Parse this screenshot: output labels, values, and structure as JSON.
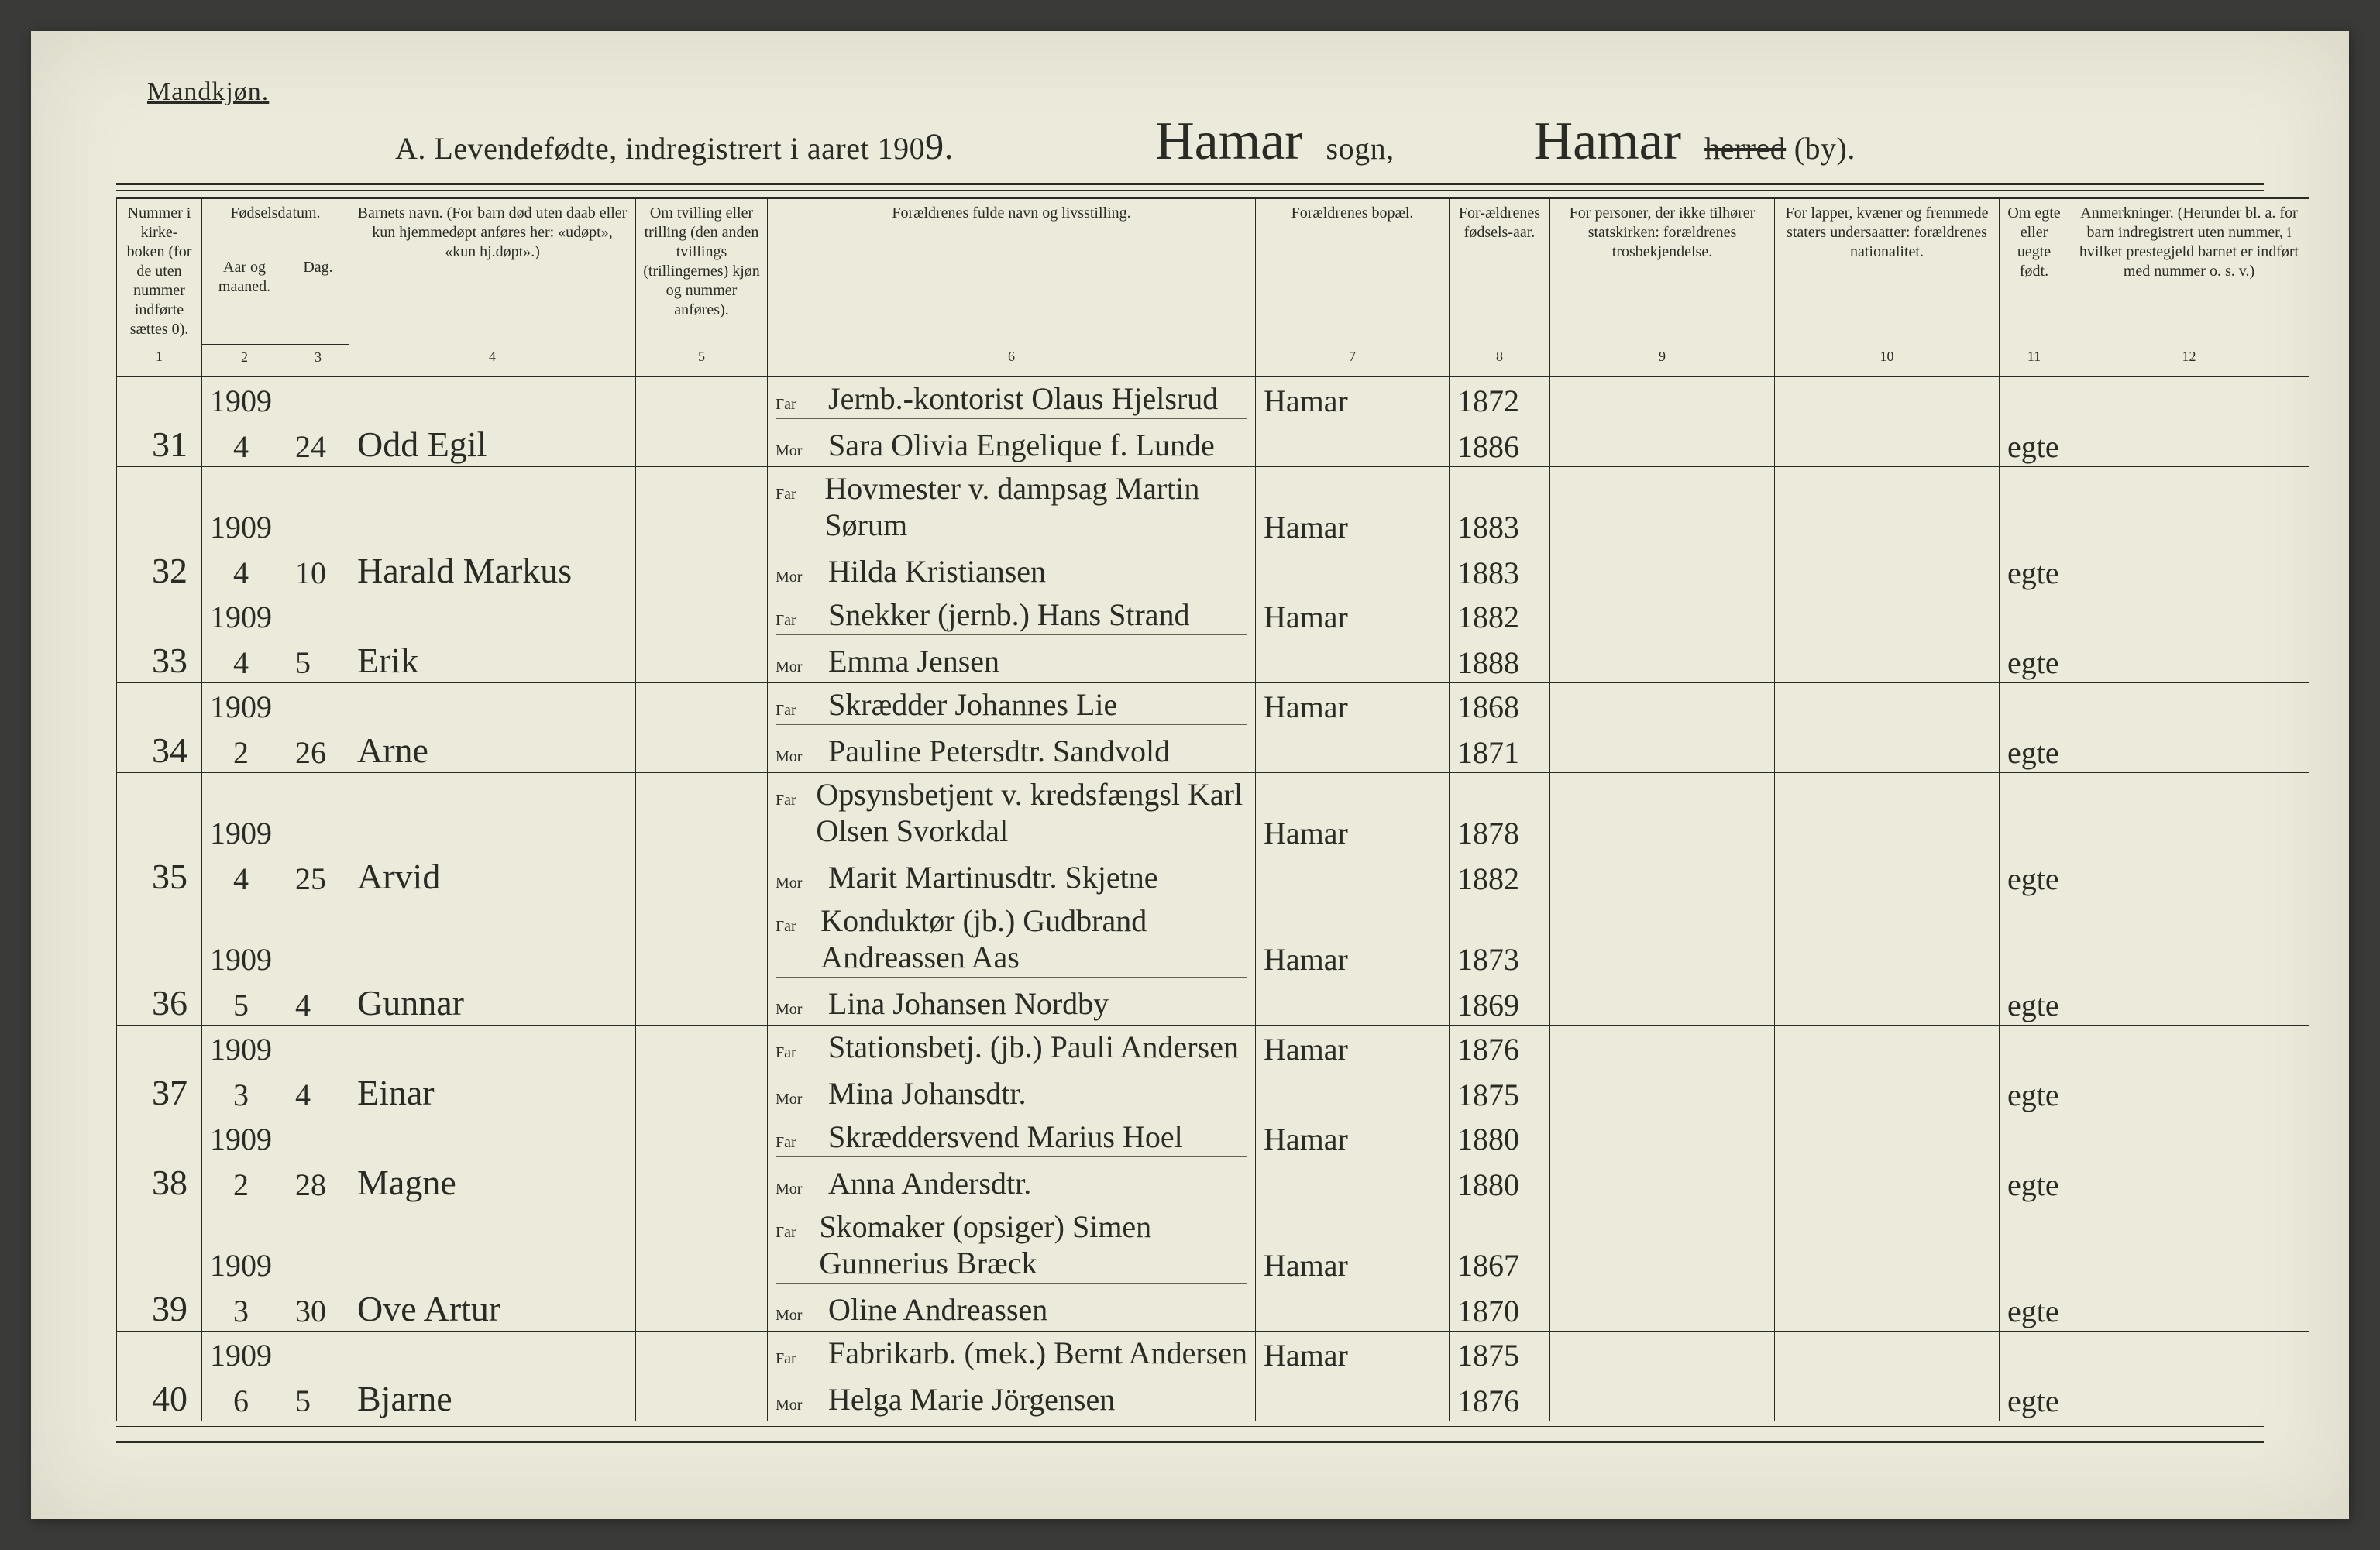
{
  "background_color": "#eceadb",
  "ink_color": "#2b2b26",
  "header": {
    "mandkjon": "Mandkjøn.",
    "title_prefix": "A.  Levendefødte, indregistrert i aaret 190",
    "title_year_suffix": "9.",
    "sogn_hand": "Hamar",
    "sogn_label": "sogn,",
    "by_hand": "Hamar",
    "herred_struck": "herred",
    "by_label": "(by)."
  },
  "columns": {
    "labels": [
      "Nummer i kirke-boken (for de uten nummer indførte sættes 0).",
      "Fødselsdatum.",
      "Aar og maaned.",
      "Dag.",
      "Barnets navn.\n(For barn død uten daab eller kun hjemmedøpt anføres her: «udøpt», «kun hj.døpt».)",
      "Om tvilling eller trilling (den anden tvillings (trillingernes) kjøn og nummer anføres).",
      "Forældrenes fulde navn og livsstilling.",
      "Forældrenes bopæl.",
      "For-ældrenes fødsels-aar.",
      "For personer, der ikke tilhører statskirken: forældrenes trosbekjendelse.",
      "For lapper, kvæner og fremmede staters undersaatter: forældrenes nationalitet.",
      "Om egte eller uegte født.",
      "Anmerkninger.\n(Herunder bl. a. for barn indregistrert uten nummer, i hvilket prestegjeld barnet er indført med nummer o. s. v.)"
    ],
    "numbers": [
      "1",
      "2",
      "3",
      "4",
      "5",
      "6",
      "7",
      "8",
      "9",
      "10",
      "11",
      "12"
    ]
  },
  "far_label": "Far",
  "mor_label": "Mor",
  "entries": [
    {
      "num": "31",
      "year": "1909",
      "month": "4",
      "day": "24",
      "child": "Odd Egil",
      "far": "Jernb.-kontorist Olaus Hjelsrud",
      "mor": "Sara Olivia Engelique f. Lunde",
      "bopael": "Hamar",
      "far_year": "1872",
      "mor_year": "1886",
      "egte": "egte"
    },
    {
      "num": "32",
      "year": "1909",
      "month": "4",
      "day": "10",
      "child": "Harald Markus",
      "far": "Hovmester v. dampsag Martin Sørum",
      "mor": "Hilda Kristiansen",
      "bopael": "Hamar",
      "far_year": "1883",
      "mor_year": "1883",
      "egte": "egte"
    },
    {
      "num": "33",
      "year": "1909",
      "month": "4",
      "day": "5",
      "child": "Erik",
      "far": "Snekker (jernb.) Hans Strand",
      "mor": "Emma Jensen",
      "bopael": "Hamar",
      "far_year": "1882",
      "mor_year": "1888",
      "egte": "egte"
    },
    {
      "num": "34",
      "year": "1909",
      "month": "2",
      "day": "26",
      "child": "Arne",
      "far": "Skrædder Johannes Lie",
      "mor": "Pauline Petersdtr. Sandvold",
      "bopael": "Hamar",
      "far_year": "1868",
      "mor_year": "1871",
      "egte": "egte"
    },
    {
      "num": "35",
      "year": "1909",
      "month": "4",
      "day": "25",
      "child": "Arvid",
      "far": "Opsynsbetjent v. kredsfængsl Karl Olsen Svorkdal",
      "mor": "Marit Martinusdtr. Skjetne",
      "bopael": "Hamar",
      "far_year": "1878",
      "mor_year": "1882",
      "egte": "egte"
    },
    {
      "num": "36",
      "year": "1909",
      "month": "5",
      "day": "4",
      "child": "Gunnar",
      "far": "Konduktør (jb.) Gudbrand Andreassen Aas",
      "mor": "Lina Johansen Nordby",
      "bopael": "Hamar",
      "far_year": "1873",
      "mor_year": "1869",
      "egte": "egte"
    },
    {
      "num": "37",
      "year": "1909",
      "month": "3",
      "day": "4",
      "child": "Einar",
      "far": "Stationsbetj. (jb.) Pauli Andersen",
      "mor": "Mina Johansdtr.",
      "bopael": "Hamar",
      "far_year": "1876",
      "mor_year": "1875",
      "egte": "egte"
    },
    {
      "num": "38",
      "year": "1909",
      "month": "2",
      "day": "28",
      "child": "Magne",
      "far": "Skræddersvend Marius Hoel",
      "mor": "Anna Andersdtr.",
      "bopael": "Hamar",
      "far_year": "1880",
      "mor_year": "1880",
      "egte": "egte"
    },
    {
      "num": "39",
      "year": "1909",
      "month": "3",
      "day": "30",
      "child": "Ove Artur",
      "far": "Skomaker (opsiger) Simen Gunnerius Bræck",
      "mor": "Oline Andreassen",
      "bopael": "Hamar",
      "far_year": "1867",
      "mor_year": "1870",
      "egte": "egte"
    },
    {
      "num": "40",
      "year": "1909",
      "month": "6",
      "day": "5",
      "child": "Bjarne",
      "far": "Fabrikarb. (mek.) Bernt Andersen",
      "mor": "Helga Marie Jörgensen",
      "bopael": "Hamar",
      "far_year": "1875",
      "mor_year": "1876",
      "egte": "egte"
    }
  ]
}
